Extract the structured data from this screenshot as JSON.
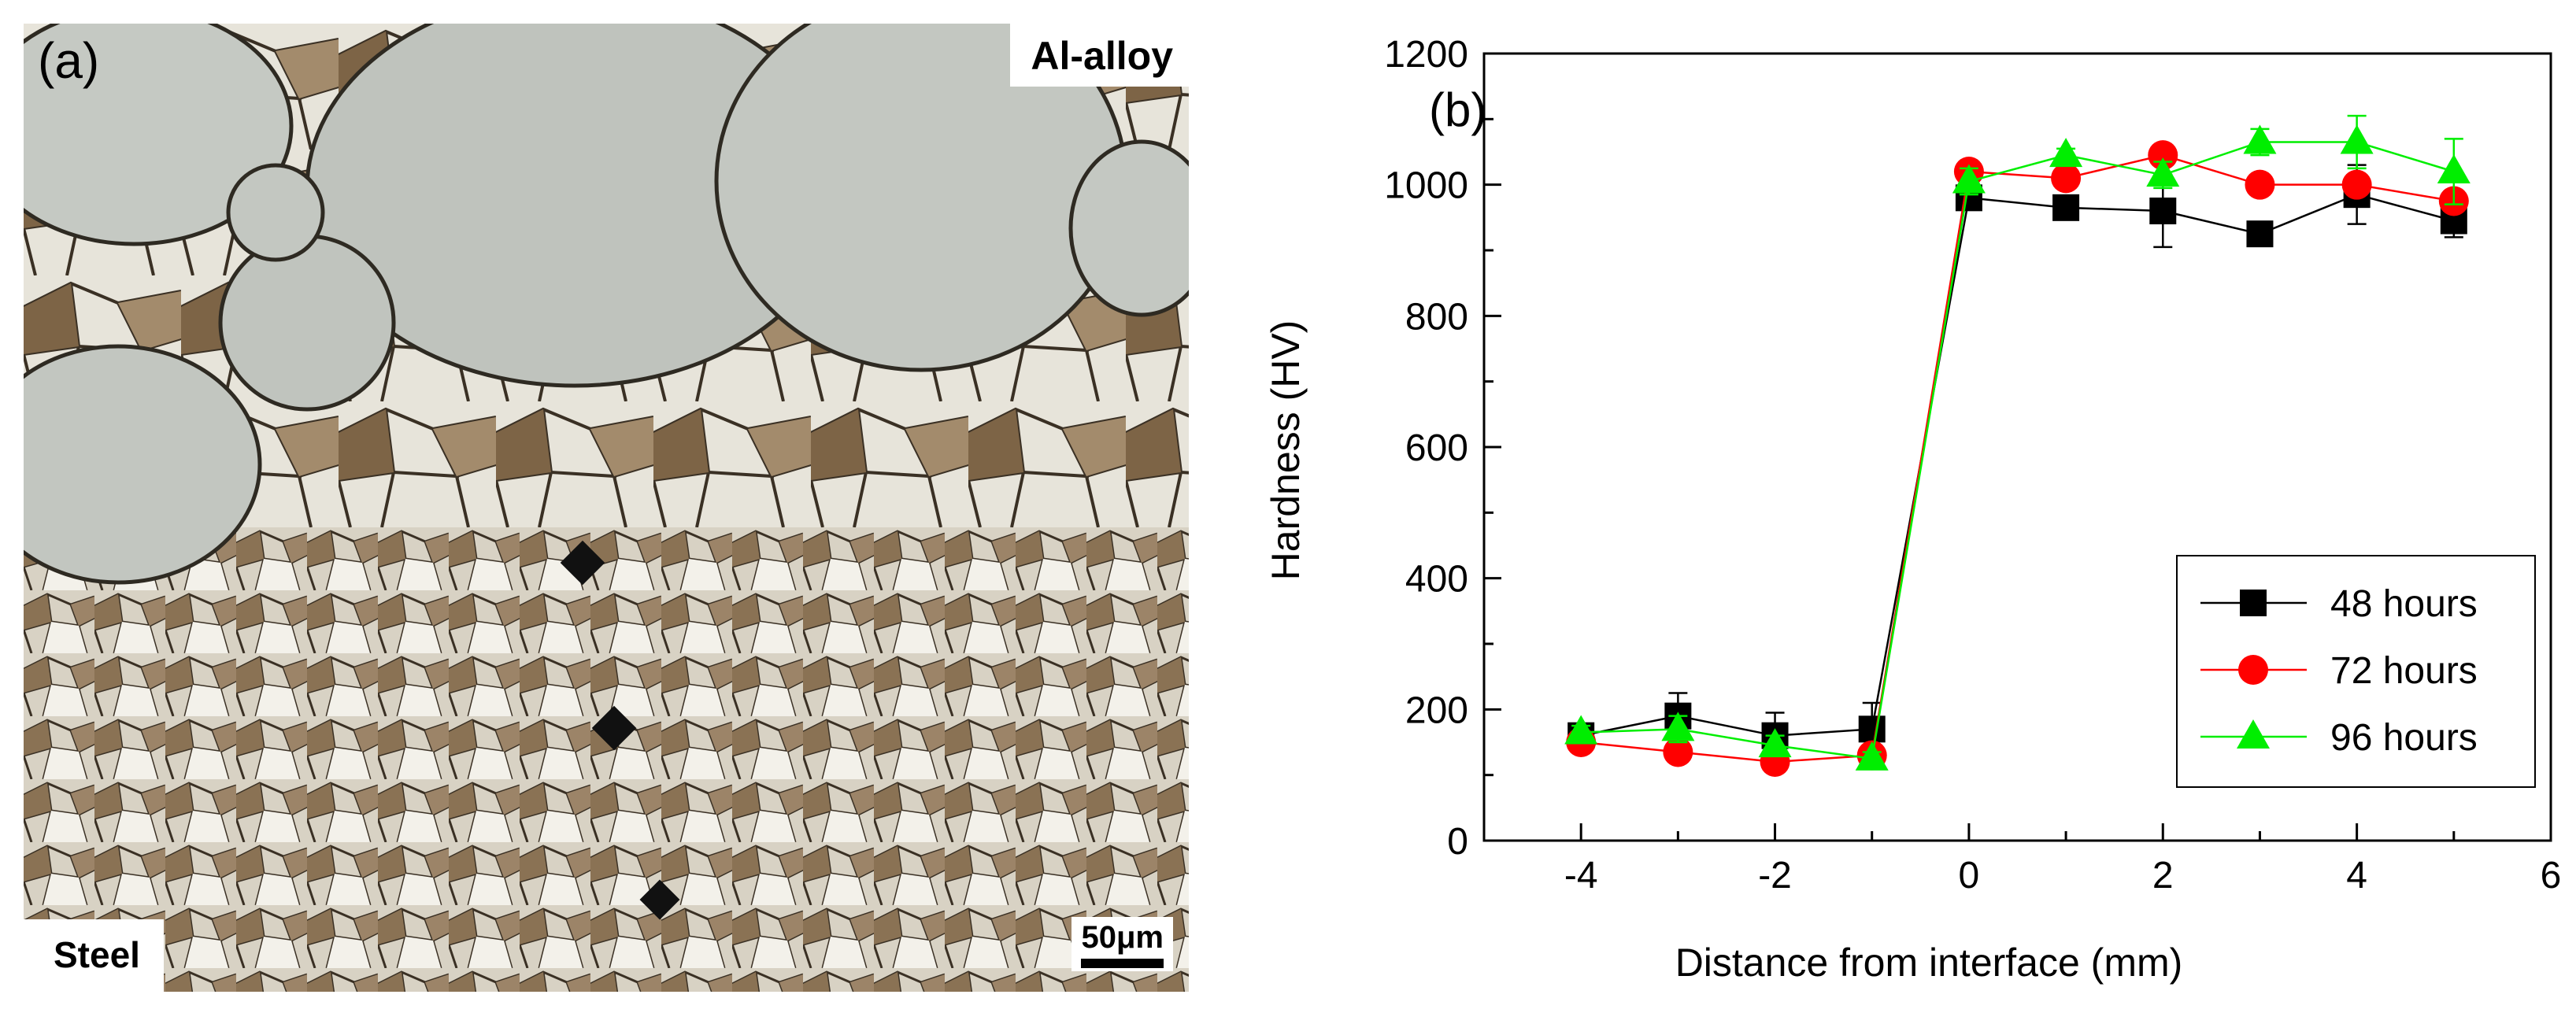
{
  "panel_a": {
    "panel_label": "(a)",
    "top_label": "Al-alloy",
    "bottom_label": "Steel",
    "scale_bar": "50μm"
  },
  "chart_data": {
    "type": "line",
    "panel_label": "(b)",
    "title": "",
    "xlabel": "Distance from interface (mm)",
    "ylabel": "Hardness (HV)",
    "xlim": [
      -5,
      6
    ],
    "ylim": [
      0,
      1200
    ],
    "xticks": [
      -4,
      -2,
      0,
      2,
      4,
      6
    ],
    "yticks": [
      0,
      200,
      400,
      600,
      800,
      1000,
      1200
    ],
    "legend_position": "lower-right",
    "grid": false,
    "x": [
      -4,
      -3,
      -2,
      -1,
      0,
      1,
      2,
      3,
      4,
      5
    ],
    "series": [
      {
        "name": "48 hours",
        "color": "#000000",
        "marker": "square",
        "values": [
          160,
          190,
          160,
          170,
          980,
          965,
          960,
          925,
          985,
          945
        ],
        "errors": [
          10,
          35,
          35,
          40,
          15,
          15,
          55,
          10,
          45,
          25
        ]
      },
      {
        "name": "72 hours",
        "color": "#ff0000",
        "marker": "circle",
        "values": [
          150,
          135,
          120,
          130,
          1020,
          1010,
          1045,
          1000,
          1000,
          975
        ],
        "errors": [
          10,
          10,
          10,
          15,
          15,
          10,
          15,
          10,
          10,
          15
        ]
      },
      {
        "name": "96 hours",
        "color": "#00ee00",
        "marker": "triangle",
        "values": [
          165,
          170,
          145,
          125,
          1005,
          1045,
          1015,
          1065,
          1065,
          1020
        ],
        "errors": [
          10,
          20,
          15,
          10,
          20,
          10,
          20,
          20,
          40,
          50
        ]
      }
    ]
  }
}
